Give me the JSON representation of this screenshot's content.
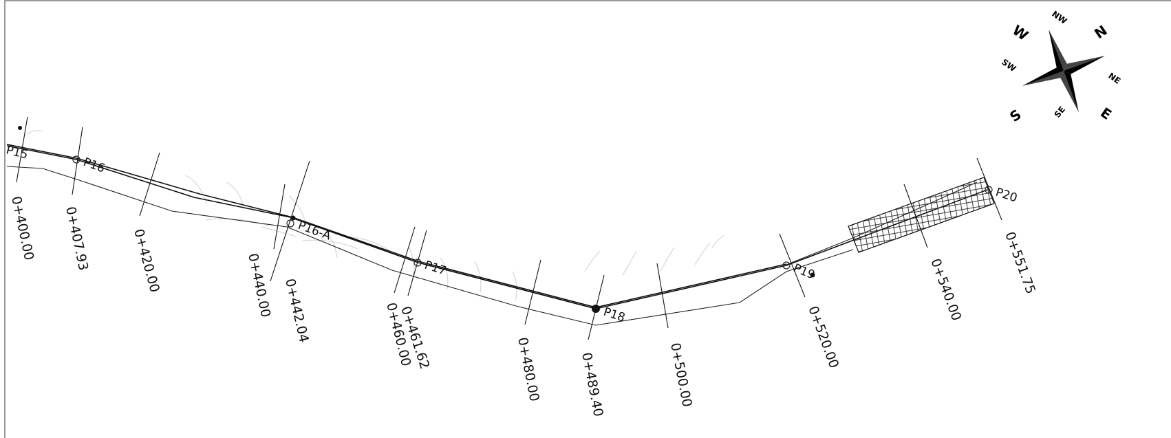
{
  "stations": [
    {
      "label": "0+400.00"
    },
    {
      "label": "0+407.93"
    },
    {
      "label": "0+420.00"
    },
    {
      "label": "0+440.00"
    },
    {
      "label": "0+442.04"
    },
    {
      "label": "0+460.00"
    },
    {
      "label": "0+461.62"
    },
    {
      "label": "0+480.00"
    },
    {
      "label": "0+489.40"
    },
    {
      "label": "0+500.00"
    },
    {
      "label": "0+520.00"
    },
    {
      "label": "0+540.00"
    },
    {
      "label": "0+551.75"
    }
  ],
  "points": [
    {
      "label": "P15"
    },
    {
      "label": "P16"
    },
    {
      "label": "P16-A"
    },
    {
      "label": "P17"
    },
    {
      "label": "P18"
    },
    {
      "label": "P19"
    },
    {
      "label": "P20"
    }
  ],
  "compass": {
    "n": "N",
    "s": "S",
    "e": "E",
    "w": "W",
    "nw": "NW",
    "ne": "NE",
    "sw": "SW",
    "se": "SE"
  },
  "colors": {
    "line": "#111111",
    "contour": "#d6d6d6",
    "frame": "#777777"
  }
}
